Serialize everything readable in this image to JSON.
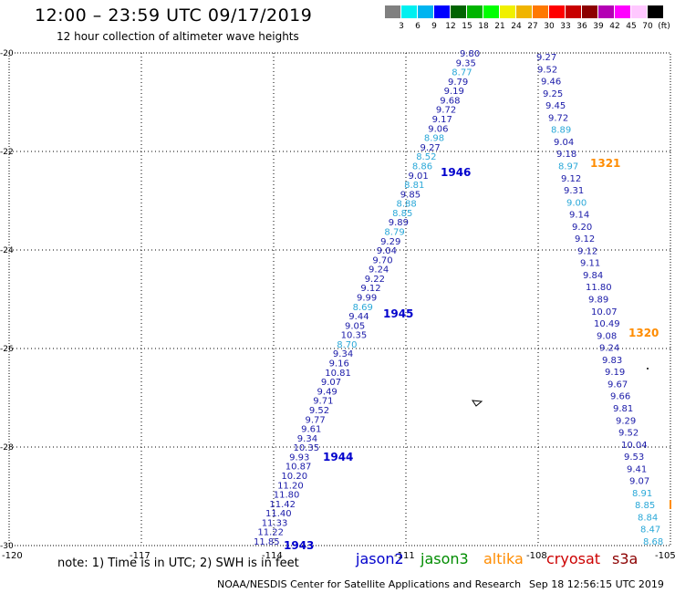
{
  "header": {
    "title": "12:00 – 23:59 UTC 09/17/2019",
    "subtitle": "12 hour collection of altimeter wave heights"
  },
  "legend": {
    "unit": "(ft)",
    "colors": [
      "#808080",
      "#00f0f0",
      "#00b4f0",
      "#0000ff",
      "#006400",
      "#00b400",
      "#00ff00",
      "#f0f000",
      "#f0b400",
      "#ff7800",
      "#ff0000",
      "#c80000",
      "#8c0000",
      "#b400b4",
      "#ff00ff",
      "#ffc8ff",
      "#000000"
    ],
    "labels": [
      "3",
      "6",
      "9",
      "12",
      "15",
      "18",
      "21",
      "24",
      "27",
      "30",
      "33",
      "36",
      "39",
      "42",
      "45",
      "70"
    ]
  },
  "map": {
    "lon_ticks": [
      "-120",
      "-117",
      "-114",
      "-111",
      "-108",
      "-105"
    ],
    "lat_ticks": [
      "-20",
      "-22",
      "-24",
      "-26",
      "-28",
      "-30"
    ],
    "lon_range": [
      -120,
      -105
    ],
    "lat_range": [
      -20,
      -30
    ],
    "pass_labels": [
      "1946",
      "1945",
      "1944",
      "1943",
      "1321",
      "1320"
    ],
    "pass_colors": {
      "jason2": "#0000cc",
      "altika": "#ff8c00"
    },
    "track_a": [
      "9.80",
      "9.35",
      "8.77",
      "9.79",
      "9.19",
      "9.68",
      "9.72",
      "9.17",
      "9.06",
      "8.98",
      "9.27",
      "8.52",
      "8.86",
      "9.01",
      "8.81",
      "9.85",
      "8.88",
      "8.85",
      "9.89",
      "8.79",
      "9.29",
      "9.04",
      "9.70",
      "9.24",
      "9.22",
      "9.12",
      "9.99",
      "8.69",
      "9.44",
      "9.05",
      "10.35",
      "8.70",
      "9.34",
      "9.16",
      "10.81",
      "9.07",
      "9.49",
      "9.71",
      "9.52",
      "9.77",
      "9.61",
      "9.34",
      "10.35",
      "9.93",
      "10.87",
      "10.20",
      "11.20",
      "11.80",
      "11.42",
      "11.40",
      "11.33",
      "11.22",
      "11.85"
    ],
    "track_a_light": [
      2,
      9,
      11,
      12,
      14,
      16,
      17,
      19,
      27,
      31
    ],
    "track_b": [
      "9.27",
      "9.52",
      "9.46",
      "9.25",
      "9.45",
      "9.72",
      "8.89",
      "9.04",
      "9.18",
      "8.97",
      "9.12",
      "9.31",
      "9.00",
      "9.14",
      "9.20",
      "9.12",
      "9.12",
      "9.11",
      "9.84",
      "11.80",
      "9.89",
      "10.07",
      "10.49",
      "9.08",
      "9.24",
      "9.83",
      "9.19",
      "9.67",
      "9.66",
      "9.81",
      "9.29",
      "9.52",
      "10.04",
      "9.53",
      "9.41",
      "9.07",
      "8.91",
      "8.85",
      "8.84",
      "8.47",
      "8.68"
    ],
    "track_b_light": [
      6,
      9,
      12,
      36,
      37,
      38,
      39,
      40
    ]
  },
  "footer": {
    "note": "note:  1) Time is in UTC;  2) SWH is in feet",
    "satellites": [
      {
        "name": "jason2",
        "color": "#0000cc"
      },
      {
        "name": "jason3",
        "color": "#008c00"
      },
      {
        "name": "altika",
        "color": "#ff8c00"
      },
      {
        "name": "cryosat",
        "color": "#cc0000"
      },
      {
        "name": "s3a",
        "color": "#8c0000"
      }
    ],
    "credit": "NOAA/NESDIS Center for Satellite Applications and Research",
    "timestamp": "Sep 18 12:56:15 UTC 2019"
  }
}
